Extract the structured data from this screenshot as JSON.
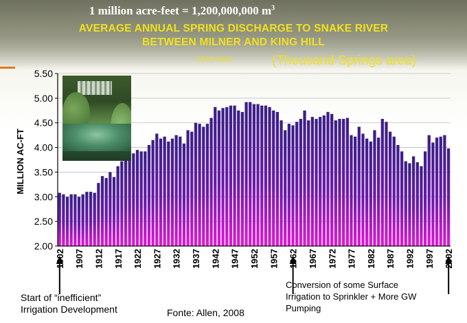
{
  "header": {
    "conversion": "1 million acre-feet = 1,200,000,000 m",
    "conversion_sup": "3",
    "title_line1": "AVERAGE ANNUAL SPRING DISCHARGE TO SNAKE RIVER",
    "title_line2": "BETWEEN MILNER AND KING HILL",
    "years": "1902-2002",
    "area": "(Thousand Springs area)"
  },
  "notes": {
    "left_line1": "Start of “inefficient”",
    "left_line2": "Irrigation Development",
    "source": "Fonte: Allen, 2008",
    "right_line1": "Conversion of some Surface",
    "right_line2": "Irrigation to Sprinkler + More GW",
    "right_line3": "Pumping"
  },
  "colors": {
    "bar_top": "#3a1f86",
    "bar_bottom": "#e01ad6",
    "title": "#f0e020",
    "accent": "#e07a1f"
  },
  "photo": {
    "icon": "waterfall-springs-photo"
  },
  "chart_data": {
    "type": "bar",
    "title": "AVERAGE ANNUAL SPRING DISCHARGE TO SNAKE RIVER BETWEEN MILNER AND KING HILL",
    "xlabel": "",
    "ylabel": "MILLION AC-FT",
    "ylim": [
      2.0,
      5.5
    ],
    "yticks": [
      "2.00",
      "2.50",
      "3.00",
      "3.50",
      "4.00",
      "4.50",
      "5.00",
      "5.50"
    ],
    "xticks": [
      "1902",
      "1907",
      "1912",
      "1917",
      "1922",
      "1927",
      "1932",
      "1937",
      "1942",
      "1947",
      "1952",
      "1957",
      "1962",
      "1967",
      "1972",
      "1977",
      "1982",
      "1987",
      "1992",
      "1997",
      "2002"
    ],
    "grid": true,
    "x": [
      1902,
      1903,
      1904,
      1905,
      1906,
      1907,
      1908,
      1909,
      1910,
      1911,
      1912,
      1913,
      1914,
      1915,
      1916,
      1917,
      1918,
      1919,
      1920,
      1921,
      1922,
      1923,
      1924,
      1925,
      1926,
      1927,
      1928,
      1929,
      1930,
      1931,
      1932,
      1933,
      1934,
      1935,
      1936,
      1937,
      1938,
      1939,
      1940,
      1941,
      1942,
      1943,
      1944,
      1945,
      1946,
      1947,
      1948,
      1949,
      1950,
      1951,
      1952,
      1953,
      1954,
      1955,
      1956,
      1957,
      1958,
      1959,
      1960,
      1961,
      1962,
      1963,
      1964,
      1965,
      1966,
      1967,
      1968,
      1969,
      1970,
      1971,
      1972,
      1973,
      1974,
      1975,
      1976,
      1977,
      1978,
      1979,
      1980,
      1981,
      1982,
      1983,
      1984,
      1985,
      1986,
      1987,
      1988,
      1989,
      1990,
      1991,
      1992,
      1993,
      1994,
      1995,
      1996,
      1997,
      1998,
      1999,
      2000,
      2001,
      2002
    ],
    "values": [
      3.08,
      3.05,
      3.0,
      3.05,
      3.05,
      3.0,
      3.05,
      3.1,
      3.1,
      3.08,
      3.28,
      3.42,
      3.38,
      3.5,
      3.4,
      3.62,
      3.72,
      3.75,
      3.8,
      3.88,
      3.95,
      3.92,
      3.92,
      4.05,
      4.15,
      4.28,
      4.18,
      4.22,
      4.12,
      4.18,
      4.25,
      4.22,
      4.08,
      4.35,
      4.32,
      4.5,
      4.48,
      4.42,
      4.48,
      4.6,
      4.82,
      4.75,
      4.8,
      4.82,
      4.85,
      4.85,
      4.75,
      4.72,
      4.92,
      4.92,
      4.88,
      4.88,
      4.85,
      4.85,
      4.82,
      4.75,
      4.72,
      4.55,
      4.35,
      4.48,
      4.45,
      4.52,
      4.58,
      4.75,
      4.55,
      4.62,
      4.58,
      4.62,
      4.65,
      4.72,
      4.68,
      4.55,
      4.58,
      4.58,
      4.6,
      4.25,
      4.22,
      4.42,
      4.28,
      4.18,
      4.12,
      4.35,
      4.2,
      4.58,
      4.52,
      4.32,
      4.22,
      4.05,
      3.92,
      3.72,
      3.68,
      3.82,
      3.7,
      3.62,
      3.92,
      4.25,
      4.1,
      4.2,
      4.22,
      4.25,
      3.98
    ]
  }
}
